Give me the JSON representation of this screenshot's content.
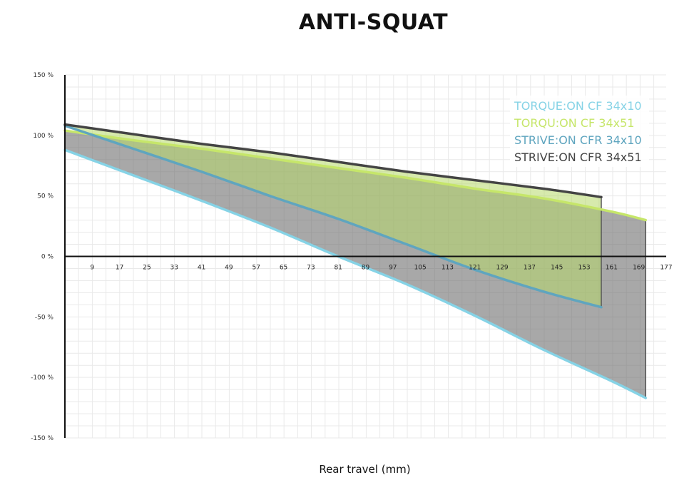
{
  "chart_data": {
    "type": "line",
    "title": "ANTI-SQUAT",
    "xlabel": "Rear travel (mm)",
    "ylabel": "",
    "x_ticks": [
      9,
      17,
      25,
      33,
      41,
      49,
      57,
      65,
      73,
      81,
      89,
      97,
      105,
      113,
      121,
      129,
      137,
      145,
      153,
      161,
      169,
      177
    ],
    "y_ticks": [
      150,
      100,
      50,
      0,
      -50,
      -100,
      -150
    ],
    "y_tick_labels": [
      "150 %",
      "100 %",
      "50 %",
      "0 %",
      "-50 %",
      "-100 %",
      "-150 %"
    ],
    "xlim": [
      1,
      177
    ],
    "ylim": [
      -150,
      150
    ],
    "grid": true,
    "legend_position": "top-right",
    "series": [
      {
        "name": "TORQUE:ON CF 34x10",
        "color": "#86d3e6",
        "x": [
          1,
          21,
          41,
          61,
          81,
          101,
          121,
          141,
          161,
          171
        ],
        "y": [
          88,
          67,
          46,
          24,
          0,
          -23,
          -49,
          -77,
          -103,
          -117
        ]
      },
      {
        "name": "TORQU:ON CF 34x51",
        "color": "#c6e66a",
        "x": [
          1,
          21,
          41,
          61,
          81,
          101,
          121,
          141,
          161,
          171
        ],
        "y": [
          104,
          96,
          89,
          81,
          73,
          65,
          56,
          48,
          37,
          30
        ]
      },
      {
        "name": "STRIVE:ON CFR 34x10",
        "color": "#5fa5bf",
        "x": [
          1,
          21,
          41,
          61,
          81,
          101,
          121,
          141,
          158
        ],
        "y": [
          108,
          89,
          70,
          50,
          31,
          10,
          -11,
          -29,
          -42
        ]
      },
      {
        "name": "STRIVE:ON CFR 34x51",
        "color": "#444444",
        "x": [
          1,
          21,
          41,
          61,
          81,
          101,
          121,
          141,
          158
        ],
        "y": [
          109,
          101,
          93,
          86,
          78,
          70,
          63,
          56,
          49
        ]
      }
    ]
  }
}
